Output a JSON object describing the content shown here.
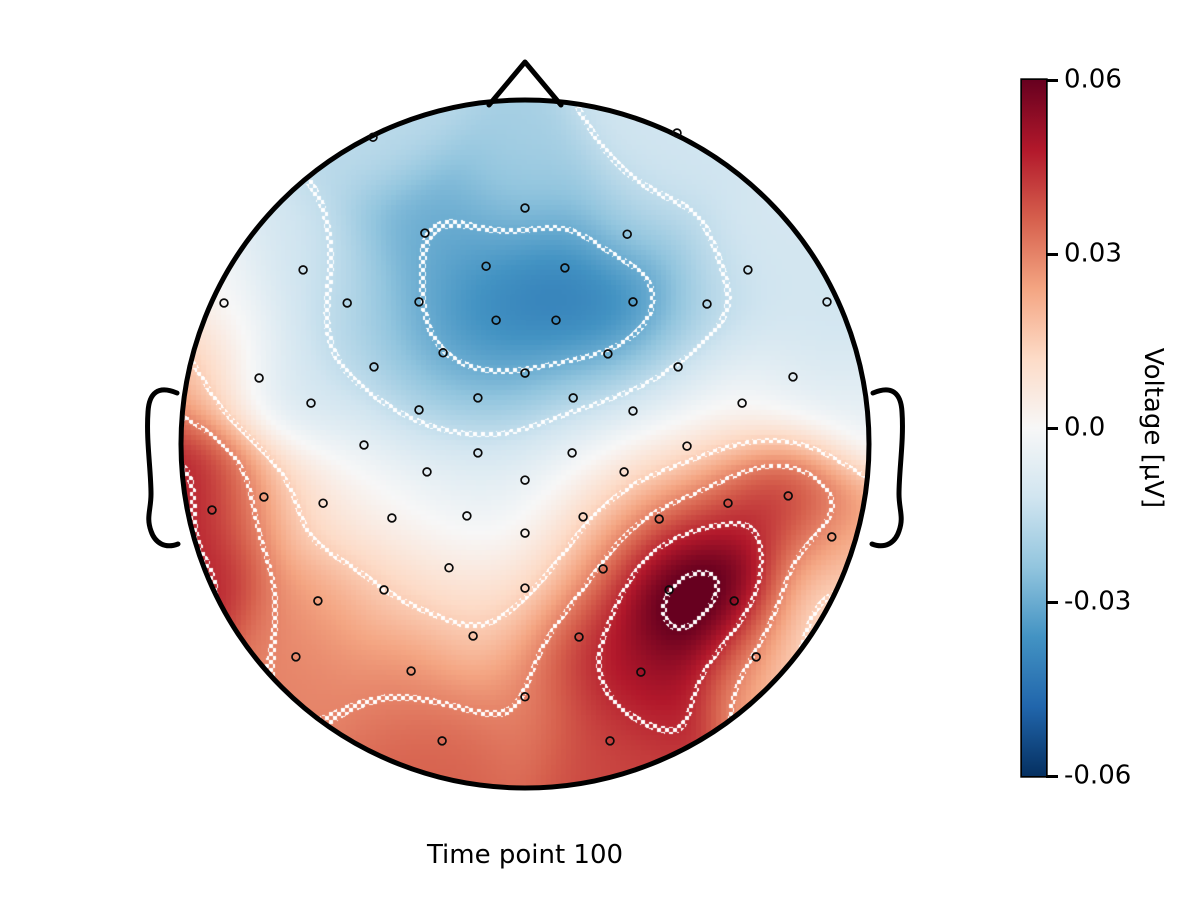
{
  "figure": {
    "background_color": "#ffffff",
    "bottom_label": "Time point 100"
  },
  "colorbar": {
    "label": "Voltage [µV]",
    "ticks": [
      "0.06",
      "0.03",
      "0.0",
      "-0.03",
      "-0.06"
    ],
    "tick_values": [
      0.06,
      0.03,
      0.0,
      -0.03,
      -0.06
    ],
    "vmin": -0.06,
    "vmax": 0.06,
    "colormap": "RdBu_r",
    "colormap_stops": [
      "#053061",
      "#2166ac",
      "#4393c3",
      "#92c5de",
      "#d1e5f0",
      "#f7f7f7",
      "#fddbc7",
      "#f4a582",
      "#d6604d",
      "#b2182b",
      "#67001f"
    ]
  },
  "chart_data": {
    "type": "heatmap",
    "subtype": "eeg-scalp-topomap",
    "xlabel": "Time point 100",
    "value_units": "µV",
    "vlim": [
      -0.06,
      0.06
    ],
    "contour_levels": [
      -0.03,
      -0.015,
      0.015,
      0.03,
      0.045,
      0.06
    ],
    "contour_style": "dotted-white",
    "head_outline": "circle-nose-ears",
    "sensor_marker": "open-black-circle",
    "sensors": [
      [
        -0.442,
        0.892,
        -0.016
      ],
      [
        0.442,
        0.904,
        -0.012
      ],
      [
        0.0,
        0.686,
        -0.02
      ],
      [
        -0.291,
        0.613,
        -0.03
      ],
      [
        0.297,
        0.61,
        -0.014
      ],
      [
        -0.645,
        0.506,
        -0.012
      ],
      [
        -0.113,
        0.517,
        -0.034
      ],
      [
        0.116,
        0.512,
        -0.042
      ],
      [
        0.648,
        0.506,
        -0.01
      ],
      [
        -0.875,
        0.41,
        0.0
      ],
      [
        -0.517,
        0.41,
        -0.016
      ],
      [
        -0.308,
        0.413,
        -0.03
      ],
      [
        0.314,
        0.413,
        -0.044
      ],
      [
        0.529,
        0.407,
        -0.018
      ],
      [
        0.878,
        0.413,
        -0.012
      ],
      [
        -0.084,
        0.36,
        -0.044
      ],
      [
        0.09,
        0.36,
        -0.046
      ],
      [
        -0.238,
        0.265,
        -0.034
      ],
      [
        0.241,
        0.262,
        -0.036
      ],
      [
        -0.439,
        0.224,
        -0.018
      ],
      [
        0.445,
        0.224,
        -0.012
      ],
      [
        -0.773,
        0.192,
        -0.008
      ],
      [
        0.779,
        0.195,
        -0.01
      ],
      [
        0.0,
        0.206,
        -0.028
      ],
      [
        -0.622,
        0.119,
        -0.012
      ],
      [
        -0.137,
        0.134,
        -0.028
      ],
      [
        0.14,
        0.134,
        -0.016
      ],
      [
        0.631,
        0.119,
        0.002
      ],
      [
        -0.308,
        0.099,
        -0.02
      ],
      [
        0.314,
        0.096,
        -0.006
      ],
      [
        -0.468,
        -0.003,
        -0.002
      ],
      [
        0.471,
        -0.006,
        0.004
      ],
      [
        -0.137,
        -0.026,
        -0.008
      ],
      [
        0.137,
        -0.026,
        -0.006
      ],
      [
        -0.285,
        -0.081,
        -0.002
      ],
      [
        0.288,
        -0.081,
        0.01
      ],
      [
        -0.91,
        -0.192,
        0.046
      ],
      [
        -0.759,
        -0.154,
        0.02
      ],
      [
        -0.587,
        -0.172,
        0.008
      ],
      [
        -0.387,
        -0.215,
        0.002
      ],
      [
        -0.169,
        -0.209,
        -0.006
      ],
      [
        0.0,
        -0.105,
        -0.008
      ],
      [
        0.169,
        -0.212,
        0.014
      ],
      [
        0.39,
        -0.218,
        0.042
      ],
      [
        0.59,
        -0.172,
        0.046
      ],
      [
        0.765,
        -0.151,
        0.046
      ],
      [
        0.892,
        -0.27,
        0.034
      ],
      [
        0.0,
        -0.259,
        0.0
      ],
      [
        -0.221,
        -0.36,
        0.008
      ],
      [
        0.227,
        -0.363,
        0.034
      ],
      [
        -0.41,
        -0.424,
        0.016
      ],
      [
        -0.602,
        -0.456,
        0.026
      ],
      [
        0.419,
        -0.424,
        0.075
      ],
      [
        0.608,
        -0.456,
        0.07
      ],
      [
        -0.151,
        -0.558,
        0.014
      ],
      [
        0.157,
        -0.561,
        0.046
      ],
      [
        0.0,
        -0.419,
        0.01
      ],
      [
        -0.666,
        -0.619,
        0.03
      ],
      [
        -0.331,
        -0.66,
        0.03
      ],
      [
        0.337,
        -0.663,
        0.052
      ],
      [
        0.672,
        -0.619,
        0.028
      ],
      [
        0.0,
        -0.735,
        0.03
      ],
      [
        -0.241,
        -0.863,
        0.036
      ],
      [
        0.247,
        -0.863,
        0.04
      ]
    ],
    "extrapolation_anchors": [
      [
        -0.96,
        0.19,
        0.026
      ],
      [
        -0.985,
        -0.1,
        0.052
      ],
      [
        -0.94,
        -0.4,
        0.048
      ],
      [
        0.97,
        0.06,
        -0.006
      ],
      [
        0.99,
        -0.33,
        0.012
      ],
      [
        0.88,
        -0.46,
        0.006
      ],
      [
        0.8,
        -0.6,
        0.002
      ]
    ]
  }
}
